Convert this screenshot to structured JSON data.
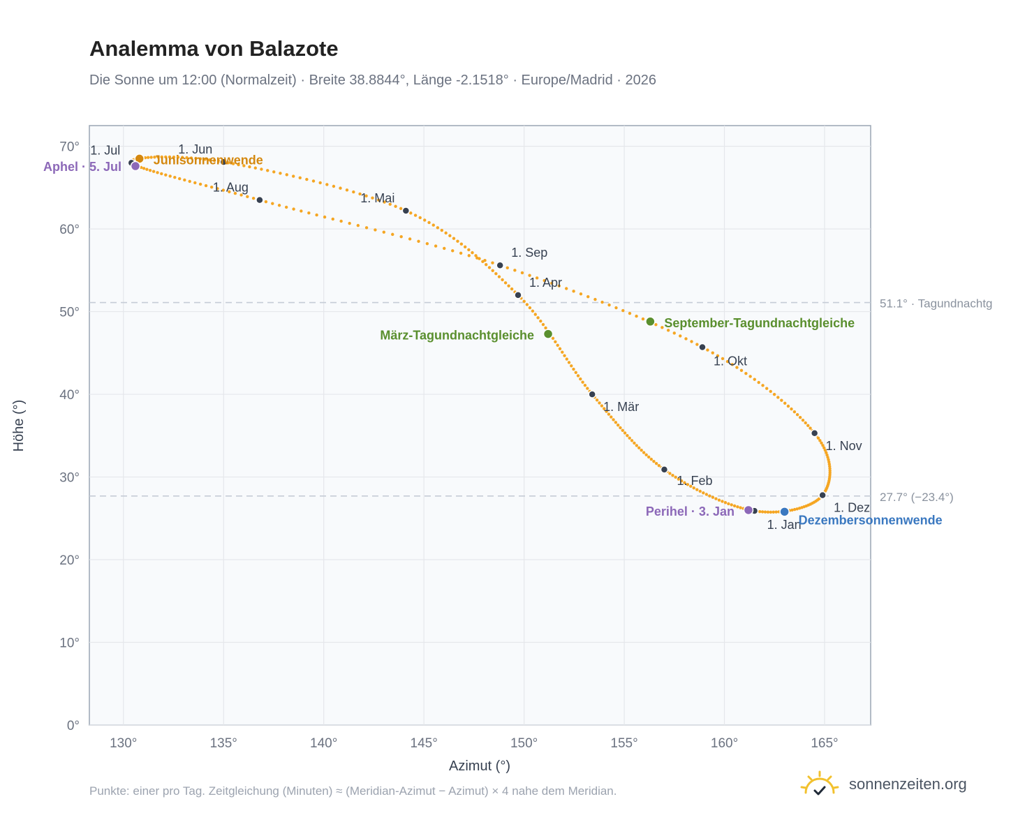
{
  "title": "Analemma von Balazote",
  "subtitle": "Die Sonne um 12:00 (Normalzeit) · Breite 38.8844°, Länge -2.1518° · Europe/Madrid · 2026",
  "footnote": "Punkte: einer pro Tag. Zeitgleichung (Minuten) ≈ (Meridian-Azimut − Azimut) × 4 nahe dem Meridian.",
  "brand": {
    "name": "sonnenzeiten.org",
    "icon": "sun-logo-icon"
  },
  "colors": {
    "curve": "#f5a623",
    "month_marker": "#374151",
    "solstice_june": "#d4880f",
    "solstice_december": "#3a78c0",
    "equinox": "#5a8f2e",
    "apsis": "#8c68b8",
    "reference_line": "#c5ccd6",
    "plot_background": "#f8fafc",
    "grid": "#e5e7eb"
  },
  "chart_data": {
    "type": "scatter",
    "title": "Analemma von Balazote",
    "xlabel": "Azimut (°)",
    "ylabel": "Höhe (°)",
    "xlim": [
      128.3,
      167.3
    ],
    "ylim": [
      0,
      72.5
    ],
    "grid": true,
    "x_ticks": [
      "130°",
      "135°",
      "140°",
      "145°",
      "150°",
      "155°",
      "160°",
      "165°"
    ],
    "y_ticks": [
      "0°",
      "10°",
      "20°",
      "30°",
      "40°",
      "50°",
      "60°",
      "70°"
    ],
    "x_tick_values": [
      130,
      135,
      140,
      145,
      150,
      155,
      160,
      165
    ],
    "y_tick_values": [
      0,
      10,
      20,
      30,
      40,
      50,
      60,
      70
    ],
    "analemma_points": [
      {
        "date": "1. Jan",
        "az": 161.5,
        "alt": 25.9
      },
      {
        "date": "1. Feb",
        "az": 157.0,
        "alt": 30.9
      },
      {
        "date": "1. Mär",
        "az": 153.4,
        "alt": 40.0
      },
      {
        "date": "1. Apr",
        "az": 149.7,
        "alt": 52.0
      },
      {
        "date": "1. Mai",
        "az": 144.1,
        "alt": 62.2
      },
      {
        "date": "1. Jun",
        "az": 135.0,
        "alt": 68.1
      },
      {
        "date": "1. Jul",
        "az": 130.4,
        "alt": 68.0
      },
      {
        "date": "1. Aug",
        "az": 136.8,
        "alt": 63.5
      },
      {
        "date": "1. Sep",
        "az": 148.8,
        "alt": 55.6
      },
      {
        "date": "1. Okt",
        "az": 158.9,
        "alt": 45.7
      },
      {
        "date": "1. Nov",
        "az": 164.5,
        "alt": 35.3
      },
      {
        "date": "1. Dez",
        "az": 164.9,
        "alt": 27.8
      }
    ],
    "special_points": [
      {
        "label": "Junisonnenwende",
        "az": 130.8,
        "alt": 68.5,
        "kind": "solstice_june"
      },
      {
        "label": "Dezembersonnenwende",
        "az": 163.0,
        "alt": 25.8,
        "kind": "solstice_december"
      },
      {
        "label": "März-Tagundnachtgleiche",
        "az": 151.2,
        "alt": 47.3,
        "kind": "equinox"
      },
      {
        "label": "September-Tagundnachtgleiche",
        "az": 156.3,
        "alt": 48.8,
        "kind": "equinox"
      },
      {
        "label": "Aphel · 5. Jul",
        "az": 130.6,
        "alt": 67.6,
        "kind": "apsis"
      },
      {
        "label": "Perihel · 3. Jan",
        "az": 161.2,
        "alt": 26.0,
        "kind": "apsis"
      }
    ],
    "reference_lines": [
      {
        "alt": 51.1,
        "label": "51.1° · Tagundnachtg"
      },
      {
        "alt": 27.7,
        "label": "27.7° (−23.4°)"
      }
    ]
  }
}
